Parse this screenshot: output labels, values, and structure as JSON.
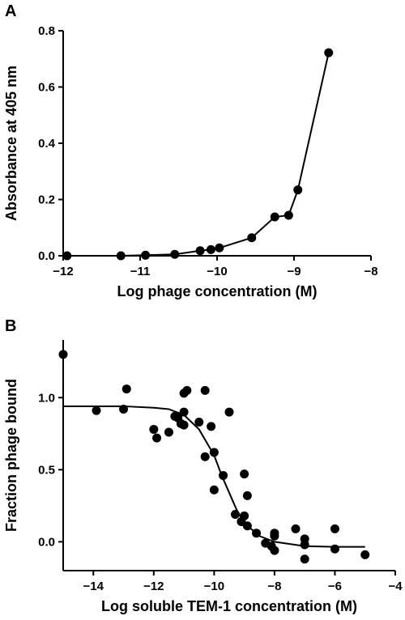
{
  "chart_data": [
    {
      "panel": "A",
      "type": "line",
      "xlabel": "Log phage concentration (M)",
      "ylabel": "Absorbance at 405 nm",
      "xlim": [
        -12,
        -8
      ],
      "ylim": [
        0.0,
        0.8
      ],
      "xticks": [
        -12,
        -11,
        -10,
        -9,
        -8
      ],
      "xtick_labels": [
        "−12",
        "−11",
        "−10",
        "−9",
        "−8"
      ],
      "yticks": [
        0.0,
        0.2,
        0.4,
        0.6,
        0.8
      ],
      "ytick_labels": [
        "0.0",
        "0.2",
        "0.4",
        "0.6",
        "0.8"
      ],
      "grid": false,
      "series": [
        {
          "marker": "circle",
          "x": [
            -11.95,
            -11.25,
            -10.93,
            -10.55,
            -10.22,
            -10.08,
            -9.97,
            -9.55,
            -9.25,
            -9.07,
            -8.95,
            -8.55
          ],
          "y": [
            0.0,
            0.0,
            0.002,
            0.005,
            0.018,
            0.022,
            0.028,
            0.064,
            0.138,
            0.144,
            0.234,
            0.722
          ]
        }
      ]
    },
    {
      "panel": "B",
      "type": "scatter",
      "xlabel": "Log soluble TEM-1 concentration (M)",
      "ylabel": "Fraction phage bound",
      "xlim": [
        -15,
        -4
      ],
      "ylim": [
        -0.2,
        1.4
      ],
      "xticks": [
        -14,
        -12,
        -10,
        -8,
        -6,
        -4
      ],
      "xtick_labels": [
        "−14",
        "−12",
        "−10",
        "−8",
        "−6",
        "−4"
      ],
      "yticks": [
        0.0,
        0.5,
        1.0
      ],
      "ytick_labels": [
        "0.0",
        "0.5",
        "1.0"
      ],
      "grid": false,
      "points": [
        {
          "x": -15.0,
          "y": 1.3
        },
        {
          "x": -13.9,
          "y": 0.91
        },
        {
          "x": -13.0,
          "y": 0.92
        },
        {
          "x": -12.9,
          "y": 1.06
        },
        {
          "x": -12.0,
          "y": 0.78
        },
        {
          "x": -11.9,
          "y": 0.72
        },
        {
          "x": -11.5,
          "y": 0.76
        },
        {
          "x": -11.3,
          "y": 0.87
        },
        {
          "x": -11.2,
          "y": 0.86
        },
        {
          "x": -11.1,
          "y": 0.82
        },
        {
          "x": -11.0,
          "y": 0.9
        },
        {
          "x": -11.0,
          "y": 0.81
        },
        {
          "x": -11.0,
          "y": 1.03
        },
        {
          "x": -10.9,
          "y": 1.05
        },
        {
          "x": -10.5,
          "y": 0.83
        },
        {
          "x": -10.3,
          "y": 1.05
        },
        {
          "x": -10.3,
          "y": 0.59
        },
        {
          "x": -10.1,
          "y": 0.8
        },
        {
          "x": -10.0,
          "y": 0.62
        },
        {
          "x": -10.0,
          "y": 0.36
        },
        {
          "x": -9.7,
          "y": 0.46
        },
        {
          "x": -9.5,
          "y": 0.9
        },
        {
          "x": -9.3,
          "y": 0.19
        },
        {
          "x": -9.1,
          "y": 0.14
        },
        {
          "x": -9.0,
          "y": 0.47
        },
        {
          "x": -9.0,
          "y": 0.18
        },
        {
          "x": -8.9,
          "y": 0.11
        },
        {
          "x": -8.9,
          "y": 0.32
        },
        {
          "x": -8.6,
          "y": 0.06
        },
        {
          "x": -8.3,
          "y": -0.01
        },
        {
          "x": -8.1,
          "y": -0.03
        },
        {
          "x": -8.0,
          "y": 0.04
        },
        {
          "x": -8.0,
          "y": 0.06
        },
        {
          "x": -8.0,
          "y": -0.06
        },
        {
          "x": -7.3,
          "y": 0.09
        },
        {
          "x": -7.0,
          "y": -0.12
        },
        {
          "x": -7.0,
          "y": 0.02
        },
        {
          "x": -7.0,
          "y": -0.02
        },
        {
          "x": -6.0,
          "y": 0.09
        },
        {
          "x": -6.0,
          "y": -0.05
        },
        {
          "x": -5.0,
          "y": -0.09
        }
      ],
      "fit": {
        "type": "sigmoidal dose-response",
        "x": [
          -15.0,
          -14.0,
          -13.0,
          -12.0,
          -11.5,
          -11.0,
          -10.5,
          -10.0,
          -9.75,
          -9.5,
          -9.25,
          -9.0,
          -8.5,
          -8.0,
          -7.0,
          -6.0,
          -5.0
        ],
        "y": [
          0.94,
          0.94,
          0.94,
          0.93,
          0.92,
          0.88,
          0.78,
          0.6,
          0.46,
          0.34,
          0.22,
          0.13,
          0.04,
          0.0,
          -0.03,
          -0.035,
          -0.035
        ]
      }
    }
  ]
}
